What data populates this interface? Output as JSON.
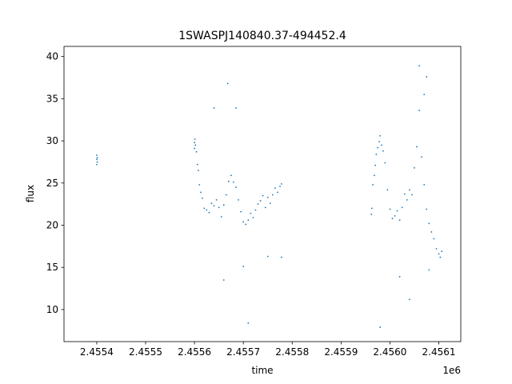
{
  "chart_data": {
    "type": "scatter",
    "title": "1SWASPJ140840.37-494452.4",
    "xlabel": "time",
    "ylabel": "flux",
    "x_offset_label": "1e6",
    "xlim": [
      2455333,
      2456145
    ],
    "ylim": [
      6.2,
      41.2
    ],
    "x_ticks": [
      2455400,
      2455500,
      2455600,
      2455700,
      2455800,
      2455900,
      2456000,
      2456100
    ],
    "x_tick_labels": [
      "2.4554",
      "2.4555",
      "2.4556",
      "2.4557",
      "2.4558",
      "2.4559",
      "2.4560",
      "2.4561"
    ],
    "y_ticks": [
      10,
      15,
      20,
      25,
      30,
      35,
      40
    ],
    "y_tick_labels": [
      "10",
      "15",
      "20",
      "25",
      "30",
      "35",
      "40"
    ],
    "grid": false,
    "marker_color": "#1f77b4",
    "series": [
      {
        "x": [
          2455400,
          2455400,
          2455400,
          2455401,
          2455401,
          2455600,
          2455600,
          2455601,
          2455602,
          2455604,
          2455606,
          2455608,
          2455610,
          2455613,
          2455616,
          2455620,
          2455625,
          2455630,
          2455635,
          2455640,
          2455645,
          2455650,
          2455655,
          2455660,
          2455665,
          2455670,
          2455675,
          2455680,
          2455685,
          2455690,
          2455695,
          2455700,
          2455705,
          2455710,
          2455715,
          2455720,
          2455725,
          2455730,
          2455735,
          2455740,
          2455745,
          2455750,
          2455755,
          2455760,
          2455765,
          2455770,
          2455775,
          2455778,
          2455962,
          2455963,
          2455965,
          2455968,
          2455970,
          2455972,
          2455975,
          2455978,
          2455980,
          2455983,
          2455986,
          2455990,
          2455995,
          2456000,
          2456005,
          2456010,
          2456015,
          2456020,
          2456025,
          2456030,
          2456035,
          2456040,
          2456045,
          2456050,
          2456055,
          2456060,
          2456065,
          2456070,
          2456075,
          2456080,
          2456085,
          2456090,
          2456095,
          2456100,
          2456103,
          2456106,
          2455640,
          2455660,
          2455668,
          2455685,
          2455700,
          2455710,
          2455750,
          2455778,
          2455980,
          2456020,
          2456040,
          2456060,
          2456070,
          2456075,
          2456080
        ],
        "y": [
          27.2,
          27.8,
          28.3,
          27.5,
          28.0,
          29.1,
          29.8,
          30.2,
          29.5,
          28.7,
          27.2,
          26.5,
          24.8,
          23.9,
          23.2,
          22.0,
          21.8,
          21.5,
          22.6,
          22.3,
          23.0,
          22.1,
          21.0,
          22.4,
          23.6,
          25.2,
          25.9,
          25.1,
          24.5,
          23.0,
          21.6,
          20.4,
          20.1,
          20.6,
          21.4,
          20.9,
          21.8,
          22.5,
          22.9,
          23.5,
          22.1,
          23.3,
          22.6,
          23.6,
          24.4,
          23.9,
          24.6,
          24.9,
          21.3,
          22.0,
          24.8,
          25.9,
          27.1,
          28.4,
          29.2,
          29.9,
          30.6,
          29.5,
          28.8,
          27.4,
          24.2,
          21.9,
          20.8,
          21.1,
          21.7,
          20.6,
          22.1,
          23.7,
          23.0,
          24.2,
          23.6,
          26.8,
          29.3,
          33.6,
          28.1,
          24.8,
          21.9,
          20.2,
          19.2,
          18.4,
          17.2,
          16.6,
          16.2,
          16.9,
          33.9,
          13.5,
          36.8,
          33.9,
          15.1,
          8.4,
          16.3,
          16.2,
          7.9,
          13.9,
          11.2,
          38.9,
          35.5,
          37.6,
          14.7
        ]
      }
    ]
  }
}
